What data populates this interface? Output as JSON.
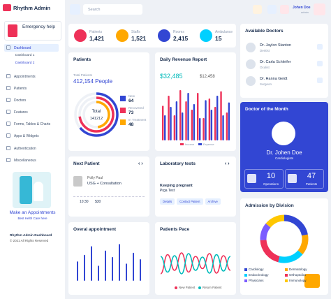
{
  "header": {
    "brand": "Rhythm Admin",
    "search_placeholder": "Search",
    "user_name": "Johen Doe",
    "user_role": "admin"
  },
  "sidebar": {
    "emergency": "Emergency help",
    "menu": [
      "Dashboard",
      "Appointments",
      "Patients",
      "Doctors",
      "Features",
      "Forms, Tables & Charts",
      "Apps & Widgets",
      "Authentication",
      "Miscellaneous"
    ],
    "submenu": [
      "Dashboard 1",
      "Dashboard 2"
    ],
    "promo_title": "Make an Appointments",
    "promo_text": "Best Helth Care here",
    "footer_title": "Rhythm Admin Dashboard",
    "footer_copy": "© 2021 All Rights Reserved"
  },
  "stats": [
    {
      "label": "Patients",
      "value": "1,421",
      "color": "#ee3158"
    },
    {
      "label": "Staffs",
      "value": "1,521",
      "color": "#ffa800"
    },
    {
      "label": "Rooms",
      "value": "2,415",
      "color": "#3246d3"
    },
    {
      "label": "Ambulance",
      "value": "15",
      "color": "#00d0ff"
    }
  ],
  "patients_card": {
    "title": "Patients",
    "total_label": "Total Patients",
    "total": "412,154 People",
    "center_label": "Total",
    "center_value": "141212",
    "legend": [
      {
        "label": "New",
        "value": 64,
        "color": "#3246d3"
      },
      {
        "label": "Recovered",
        "value": 73,
        "color": "#ee3158"
      },
      {
        "label": "In Treatment",
        "value": 48,
        "color": "#ffa800"
      }
    ]
  },
  "revenue": {
    "title": "Daily Revenue Report",
    "income_total": "$32,485",
    "expense_total": "$12,458",
    "ylim": [
      0,
      100
    ],
    "series": [
      {
        "name": "Income",
        "color": "#ee3158",
        "values": [
          62,
          80,
          45,
          90,
          70,
          55,
          85,
          40,
          75,
          60,
          88,
          50
        ]
      },
      {
        "name": "Expense",
        "color": "#3246d3",
        "values": [
          45,
          60,
          70,
          50,
          85,
          65,
          40,
          72,
          55,
          80,
          45,
          68
        ]
      }
    ]
  },
  "doctors": {
    "title": "Available Doctors",
    "list": [
      {
        "name": "Dr. Jaylon Stanton",
        "role": "Dentist"
      },
      {
        "name": "Dr. Carla Schleifer",
        "role": "Oculist"
      },
      {
        "name": "Dr. Hanna Geidt",
        "role": "Surgeon"
      }
    ]
  },
  "doctor_of_month": {
    "title": "Doctor of the Month",
    "name": "Dr. Johen Doe",
    "role": "Cardiologists",
    "stats": [
      {
        "value": "10",
        "label": "Operations"
      },
      {
        "value": "47",
        "label": "Patients"
      }
    ]
  },
  "next_patient": {
    "title": "Next Patient",
    "name": "Polly Paul",
    "service": "USG + Consultation",
    "time": "10:30",
    "price": "$30"
  },
  "lab": {
    "title": "Laboratory tests",
    "test_name": "Keeping pregnant",
    "test_type": "Prga Test",
    "buttons": [
      "Details",
      "Contact Patient",
      "Archive"
    ]
  },
  "appointments": {
    "title": "Overal appointment",
    "color": "#3246d3",
    "ylim": [
      0,
      100
    ],
    "values": [
      45,
      60,
      80,
      35,
      70,
      55,
      85,
      40,
      65,
      50
    ]
  },
  "pace": {
    "title": "Patients Pace",
    "ylim": [
      0,
      100
    ],
    "series": [
      {
        "name": "New Patient",
        "color": "#ee3158",
        "values": [
          20,
          75,
          30,
          80,
          25,
          70,
          35,
          78,
          22,
          72,
          30
        ]
      },
      {
        "name": "Return Patient",
        "color": "#00baba",
        "values": [
          70,
          25,
          72,
          20,
          78,
          30,
          68,
          22,
          75,
          28,
          70
        ]
      }
    ]
  },
  "admission": {
    "title": "Admission by Division",
    "segments": [
      {
        "name": "Cardiology",
        "value": 22,
        "color": "#3246d3"
      },
      {
        "name": "Dermatology",
        "value": 14,
        "color": "#ffa800"
      },
      {
        "name": "Endocrinology",
        "value": 18,
        "color": "#00d0ff"
      },
      {
        "name": "Orthopedics",
        "value": 20,
        "color": "#ee3158"
      },
      {
        "name": "Physicians",
        "value": 12,
        "color": "#7b5cff"
      },
      {
        "name": "Immunology",
        "value": 14,
        "color": "#ffc700"
      }
    ]
  }
}
